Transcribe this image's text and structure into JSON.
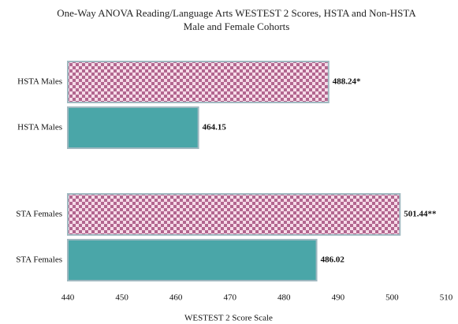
{
  "chart_data": {
    "type": "hbar",
    "title": "One-Way ANOVA Reading/Language Arts WESTEST 2 Scores, HSTA and Non-HSTA Male and Female Cohorts",
    "categories": [
      "HSTA Males",
      "HSTA Males",
      "STA Females",
      "STA Females"
    ],
    "values": [
      488.24,
      464.15,
      501.44,
      486.02
    ],
    "value_labels": [
      "488.24*",
      "464.15",
      "501.44**",
      "486.02"
    ],
    "colors": [
      "#b2668f",
      "#4aa6a8",
      "#b2668f",
      "#4aa6a8"
    ],
    "patterns": [
      "checker",
      "solid",
      "checker",
      "solid"
    ],
    "xlim": [
      440,
      510
    ],
    "xticks": [
      440,
      450,
      460,
      470,
      480,
      490,
      500,
      510
    ],
    "xlabel": "WESTEST 2 Score Scale"
  }
}
